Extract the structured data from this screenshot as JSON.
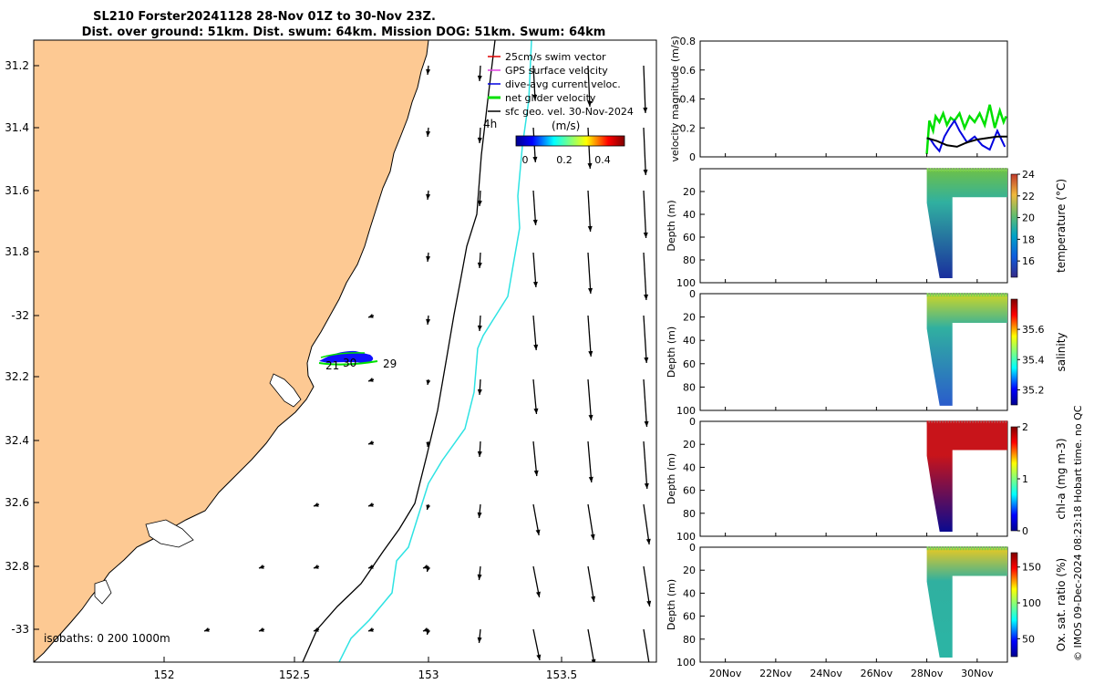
{
  "title": {
    "line1": "SL210 Forster20241128 28-Nov 01Z to 30-Nov 23Z.",
    "line2": "Dist. over ground: 51km. Dist. swum: 64km. Mission DOG: 51km. Swum: 64km"
  },
  "map": {
    "lon_ticks": [
      "152",
      "152.5",
      "153",
      "153.5"
    ],
    "lat_ticks": [
      "31.2",
      "31.4",
      "31.6",
      "31.8",
      "-32",
      "32.2",
      "32.4",
      "32.6",
      "32.8",
      "-33"
    ],
    "legend": [
      {
        "label": "25cm/s swim vector",
        "color": "#e00000"
      },
      {
        "label": "GPS surface velocity",
        "color": "#e040e0"
      },
      {
        "label": "dive-avg current veloc.",
        "color": "#0000e0"
      },
      {
        "label": "net glider velocity",
        "color": "#00e000"
      },
      {
        "label": "sfc geo. vel. 30-Nov-2024",
        "color": "#000000"
      }
    ],
    "colorbar_label": "(m/s)",
    "colorbar_ticks": [
      "0",
      "0.2",
      "0.4"
    ],
    "hour_label": "4h",
    "day_labels": [
      "21",
      "30",
      "29"
    ],
    "isobaths_label": "isobaths: 0   200  1000m",
    "land_color": "#fdc993"
  },
  "chart_data": [
    {
      "type": "line",
      "ylabel": "velocity magnitude (m/s)",
      "ylim": [
        0,
        0.8
      ],
      "yticks": [
        "0",
        "0.2",
        "0.4",
        "0.6",
        "0.8"
      ],
      "xlim": [
        19,
        31.2
      ],
      "series": [
        {
          "name": "net glider velocity",
          "color": "#00e000",
          "x": [
            28.0,
            28.1,
            28.25,
            28.35,
            28.5,
            28.65,
            28.8,
            28.95,
            29.1,
            29.3,
            29.5,
            29.7,
            29.9,
            30.1,
            30.3,
            30.5,
            30.7,
            30.9,
            31.05,
            31.15
          ],
          "y": [
            0.02,
            0.25,
            0.18,
            0.28,
            0.24,
            0.3,
            0.22,
            0.27,
            0.25,
            0.3,
            0.2,
            0.28,
            0.24,
            0.3,
            0.22,
            0.36,
            0.2,
            0.32,
            0.24,
            0.28
          ]
        },
        {
          "name": "dive-avg current veloc.",
          "color": "#0000e0",
          "x": [
            28.0,
            28.15,
            28.3,
            28.5,
            28.7,
            28.9,
            29.1,
            29.3,
            29.6,
            29.9,
            30.2,
            30.5,
            30.8,
            31.1
          ],
          "y": [
            0.13,
            0.12,
            0.08,
            0.04,
            0.14,
            0.2,
            0.25,
            0.18,
            0.1,
            0.14,
            0.08,
            0.05,
            0.18,
            0.07
          ]
        },
        {
          "name": "sfc geo. vel. 30-Nov-2024",
          "color": "#000000",
          "x": [
            28.0,
            28.4,
            28.8,
            29.2,
            29.6,
            30.0,
            30.4,
            30.8,
            31.2
          ],
          "y": [
            0.13,
            0.11,
            0.08,
            0.07,
            0.1,
            0.12,
            0.13,
            0.14,
            0.14
          ]
        }
      ]
    },
    {
      "type": "heatmap",
      "ylabel": "Depth (m)",
      "clabel": "temperature (°C)",
      "ylim": [
        100,
        0
      ],
      "yticks": [
        "20",
        "40",
        "60",
        "80",
        "100"
      ],
      "clim": [
        14.5,
        24
      ],
      "cticks": [
        "24",
        "22",
        "20",
        "18",
        "16"
      ],
      "surface": 20.5,
      "bottom": 15.0
    },
    {
      "type": "heatmap",
      "ylabel": "Depth (m)",
      "clabel": "salinity",
      "ylim": [
        100,
        0
      ],
      "yticks": [
        "0",
        "20",
        "40",
        "60",
        "80",
        "100"
      ],
      "clim": [
        35.1,
        35.8
      ],
      "cticks": [
        "35.6",
        "35.4",
        "35.2"
      ],
      "surface": 35.52,
      "bottom": 35.25
    },
    {
      "type": "heatmap",
      "ylabel": "Depth (m)",
      "clabel": "chl-a (mg m-3)",
      "ylim": [
        100,
        0
      ],
      "yticks": [
        "0",
        "20",
        "40",
        "60",
        "80",
        "100"
      ],
      "clim": [
        0,
        2
      ],
      "cticks": [
        "2",
        "1",
        "0"
      ],
      "surface": 2.0,
      "bottom": 0.05
    },
    {
      "type": "heatmap",
      "ylabel": "Depth (m)",
      "clabel": "Ox. sat. ratio (%)",
      "ylim": [
        100,
        0
      ],
      "yticks": [
        "0",
        "20",
        "40",
        "60",
        "80",
        "100"
      ],
      "clim": [
        25,
        170
      ],
      "cticks": [
        "150",
        "100",
        "50"
      ],
      "surface": 110,
      "bottom": 85
    }
  ],
  "time_axis": {
    "ticks": [
      "20Nov",
      "22Nov",
      "24Nov",
      "26Nov",
      "28Nov",
      "30Nov"
    ],
    "values": [
      20,
      22,
      24,
      26,
      28,
      30
    ]
  },
  "credit": "© IMOS 09-Dec-2024 08:23:18 Hobart time. no QC"
}
